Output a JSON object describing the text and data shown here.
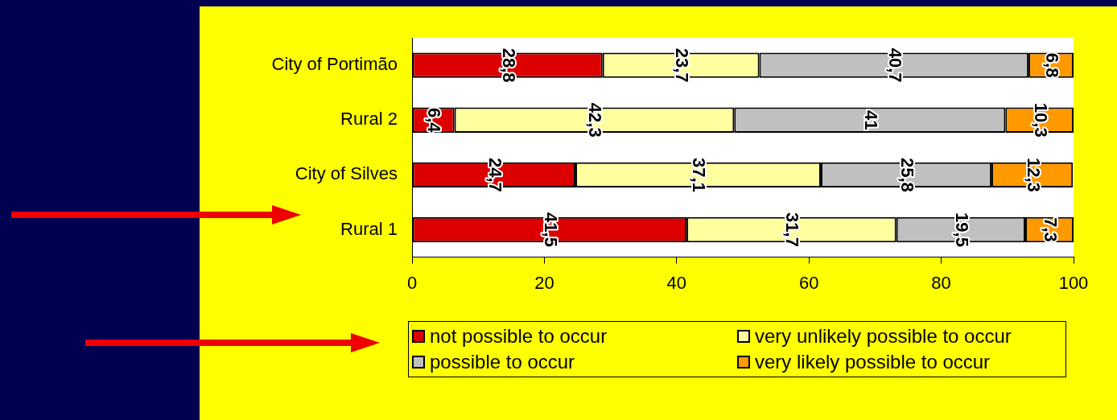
{
  "chart_data": {
    "type": "bar",
    "orientation": "horizontal",
    "stacked": true,
    "categories": [
      "City of Portimão",
      "Rural 2",
      "City of Silves",
      "Rural 1"
    ],
    "series": [
      {
        "name": "not possible to occur",
        "color": "#dd0000",
        "values": [
          28.8,
          6.4,
          24.7,
          41.5
        ],
        "value_labels": [
          "28,8",
          "6,4",
          "24,7",
          "41,5"
        ]
      },
      {
        "name": "very unlikely possible to occur",
        "color": "#ffffa0",
        "values": [
          23.7,
          42.3,
          37.1,
          31.7
        ],
        "value_labels": [
          "23,7",
          "42,3",
          "37,1",
          "31,7"
        ]
      },
      {
        "name": "possible to occur",
        "color": "#c0c0c0",
        "values": [
          40.7,
          41,
          25.8,
          19.5
        ],
        "value_labels": [
          "40,7",
          "41",
          "25,8",
          "19,5"
        ]
      },
      {
        "name": "very likely possible to occur",
        "color": "#ff9900",
        "values": [
          6.8,
          10.3,
          12.3,
          7.3
        ],
        "value_labels": [
          "6,8",
          "10,3",
          "12,3",
          "7,3"
        ]
      }
    ],
    "xlim": [
      0,
      100
    ],
    "xticks": [
      0,
      20,
      40,
      60,
      80,
      100
    ],
    "grid": false,
    "legend": "bottom"
  }
}
